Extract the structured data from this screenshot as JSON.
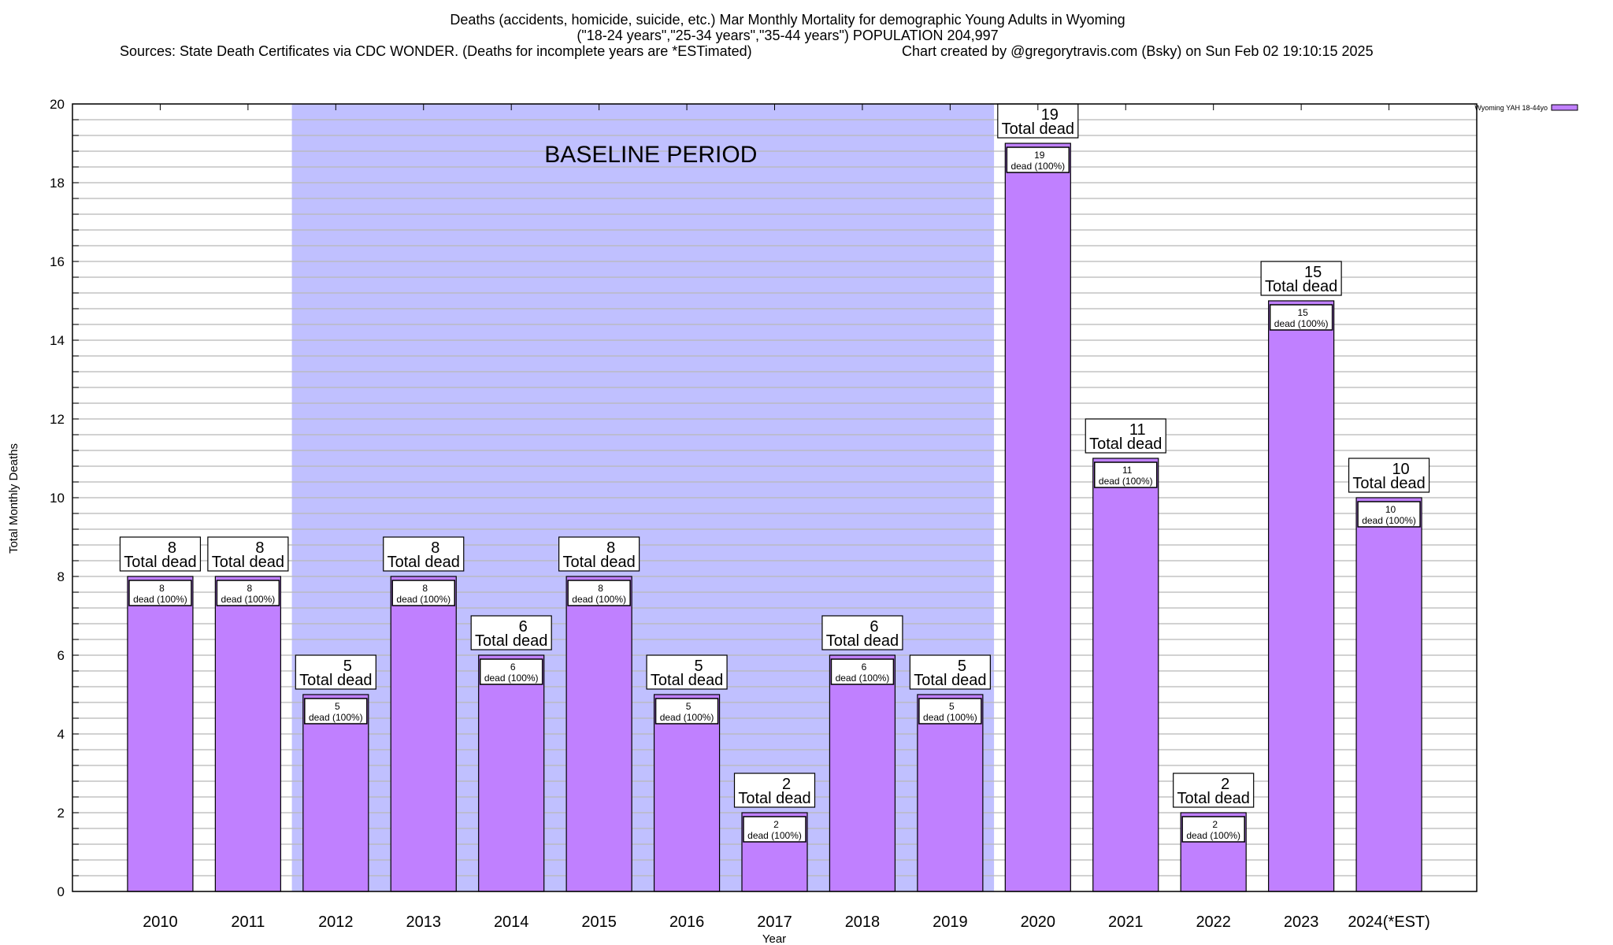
{
  "chart_data": {
    "type": "bar",
    "title_lines": [
      "Deaths (accidents, homicide, suicide, etc.) Mar Monthly Mortality for demographic Young Adults in Wyoming",
      "(\"18-24 years\",\"25-34 years\",\"35-44 years\") POPULATION 204,997"
    ],
    "sources": "Sources: State Death Certificates via CDC WONDER. (Deaths for incomplete years are *ESTimated)",
    "credit": "Chart created by @gregorytravis.com (Bsky) on Sun Feb 02 19:10:15 2025",
    "xlabel": "Year",
    "ylabel": "Total Monthly Deaths",
    "ylim": [
      0,
      20
    ],
    "yticks": [
      0,
      2,
      4,
      6,
      8,
      10,
      12,
      14,
      16,
      18,
      20
    ],
    "y_minor_step": 0.4,
    "grid": true,
    "categories": [
      "2010",
      "2011",
      "2012",
      "2013",
      "2014",
      "2015",
      "2016",
      "2017",
      "2018",
      "2019",
      "2020",
      "2021",
      "2022",
      "2023",
      "2024(*EST)"
    ],
    "series": [
      {
        "name": "Wyoming YAH 18-44yo",
        "color": "#c080ff",
        "values": [
          8,
          8,
          5,
          8,
          6,
          8,
          5,
          2,
          6,
          5,
          19,
          11,
          2,
          15,
          10
        ]
      }
    ],
    "top_label_suffix": "Total dead",
    "inner_label_suffix": "dead (100%)",
    "baseline": {
      "label": "BASELINE PERIOD",
      "from": "2012",
      "to": "2019",
      "color": "#c0c0ff"
    },
    "legend_placement": "top-right"
  }
}
